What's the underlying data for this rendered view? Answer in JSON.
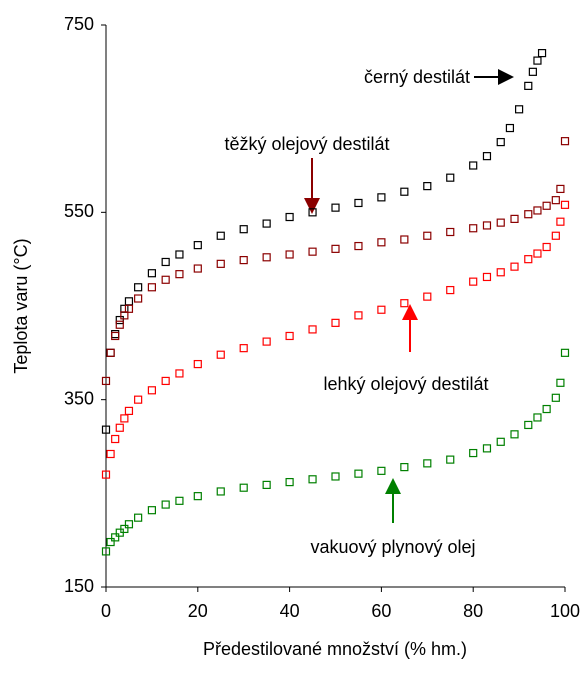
{
  "chart_data": {
    "type": "scatter",
    "xlabel": "Předestilované množství  (% hm.)",
    "ylabel": "Teplota varu (°C)",
    "xlim": [
      0,
      100
    ],
    "xticks": [
      0,
      20,
      40,
      60,
      80,
      100
    ],
    "ylim": [
      150,
      750
    ],
    "yticks": [
      150,
      350,
      550,
      750
    ],
    "grid": false,
    "series": [
      {
        "name": "černý destilát",
        "color": "#000000",
        "x": [
          0,
          1,
          2,
          3,
          4,
          5,
          7,
          10,
          13,
          16,
          20,
          25,
          30,
          35,
          40,
          45,
          50,
          55,
          60,
          65,
          70,
          75,
          80,
          83,
          86,
          88,
          90,
          92,
          93,
          94,
          95
        ],
        "y": [
          318,
          400,
          420,
          435,
          447,
          455,
          470,
          485,
          497,
          505,
          515,
          525,
          532,
          538,
          545,
          550,
          555,
          560,
          566,
          572,
          578,
          587,
          600,
          610,
          625,
          640,
          660,
          685,
          700,
          712,
          720
        ]
      },
      {
        "name": "těžký olejový destilát",
        "color": "#8b0000",
        "x": [
          0,
          1,
          2,
          3,
          4,
          5,
          7,
          10,
          13,
          16,
          20,
          25,
          30,
          35,
          40,
          45,
          50,
          55,
          60,
          65,
          70,
          75,
          80,
          83,
          86,
          89,
          92,
          94,
          96,
          98,
          99,
          100
        ],
        "y": [
          370,
          400,
          418,
          430,
          440,
          447,
          458,
          470,
          478,
          484,
          490,
          495,
          499,
          502,
          505,
          508,
          511,
          514,
          518,
          521,
          525,
          529,
          533,
          536,
          539,
          543,
          548,
          552,
          557,
          563,
          575,
          626
        ]
      },
      {
        "name": "lehký olejový destilát",
        "color": "#ff0000",
        "x": [
          0,
          1,
          2,
          3,
          4,
          5,
          7,
          10,
          13,
          16,
          20,
          25,
          30,
          35,
          40,
          45,
          50,
          55,
          60,
          65,
          70,
          75,
          80,
          83,
          86,
          89,
          92,
          94,
          96,
          98,
          99,
          100
        ],
        "y": [
          270,
          292,
          308,
          320,
          330,
          338,
          350,
          360,
          370,
          378,
          388,
          398,
          405,
          412,
          418,
          425,
          432,
          440,
          446,
          453,
          460,
          467,
          476,
          481,
          486,
          492,
          500,
          506,
          513,
          525,
          540,
          558
        ]
      },
      {
        "name": "vakuový plynový olej",
        "color": "#008000",
        "x": [
          0,
          1,
          2,
          3,
          4,
          5,
          7,
          10,
          13,
          16,
          20,
          25,
          30,
          35,
          40,
          45,
          50,
          55,
          60,
          65,
          70,
          75,
          80,
          83,
          86,
          89,
          92,
          94,
          96,
          98,
          99,
          100
        ],
        "y": [
          188,
          198,
          203,
          208,
          212,
          217,
          224,
          232,
          238,
          242,
          247,
          252,
          256,
          259,
          262,
          265,
          268,
          271,
          274,
          278,
          282,
          286,
          293,
          298,
          305,
          313,
          323,
          331,
          340,
          352,
          368,
          400
        ]
      }
    ]
  }
}
